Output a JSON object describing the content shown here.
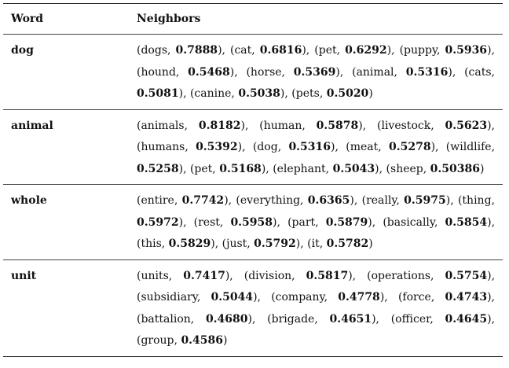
{
  "table": {
    "header": {
      "word": "Word",
      "neighbors": "Neighbors"
    },
    "rows": [
      {
        "word": "dog",
        "neighbors": [
          {
            "term": "dogs",
            "score": "0.7888"
          },
          {
            "term": "cat",
            "score": "0.6816"
          },
          {
            "term": "pet",
            "score": "0.6292"
          },
          {
            "term": "puppy",
            "score": "0.5936"
          },
          {
            "term": "hound",
            "score": "0.5468"
          },
          {
            "term": "horse",
            "score": "0.5369"
          },
          {
            "term": "animal",
            "score": "0.5316"
          },
          {
            "term": "cats",
            "score": "0.5081"
          },
          {
            "term": "canine",
            "score": "0.5038"
          },
          {
            "term": "pets",
            "score": "0.5020"
          }
        ]
      },
      {
        "word": "animal",
        "neighbors": [
          {
            "term": "animals",
            "score": "0.8182"
          },
          {
            "term": "human",
            "score": "0.5878"
          },
          {
            "term": "livestock",
            "score": "0.5623"
          },
          {
            "term": "humans",
            "score": "0.5392"
          },
          {
            "term": "dog",
            "score": "0.5316"
          },
          {
            "term": "meat",
            "score": "0.5278"
          },
          {
            "term": "wildlife",
            "score": "0.5258"
          },
          {
            "term": "pet",
            "score": "0.5168"
          },
          {
            "term": "elephant",
            "score": "0.5043"
          },
          {
            "term": "sheep",
            "score": "0.50386"
          }
        ]
      },
      {
        "word": "whole",
        "neighbors": [
          {
            "term": "entire",
            "score": "0.7742"
          },
          {
            "term": "everything",
            "score": "0.6365"
          },
          {
            "term": "really",
            "score": "0.5975"
          },
          {
            "term": "thing",
            "score": "0.5972"
          },
          {
            "term": "rest",
            "score": "0.5958"
          },
          {
            "term": "part",
            "score": "0.5879"
          },
          {
            "term": "basically",
            "score": "0.5854"
          },
          {
            "term": "this",
            "score": "0.5829"
          },
          {
            "term": "just",
            "score": "0.5792"
          },
          {
            "term": "it",
            "score": "0.5782"
          }
        ]
      },
      {
        "word": "unit",
        "neighbors": [
          {
            "term": "units",
            "score": "0.7417"
          },
          {
            "term": "division",
            "score": "0.5817"
          },
          {
            "term": "operations",
            "score": "0.5754"
          },
          {
            "term": "subsidiary",
            "score": "0.5044"
          },
          {
            "term": "company",
            "score": "0.4778"
          },
          {
            "term": "force",
            "score": "0.4743"
          },
          {
            "term": "battalion",
            "score": "0.4680"
          },
          {
            "term": "brigade",
            "score": "0.4651"
          },
          {
            "term": "officer",
            "score": "0.4645"
          },
          {
            "term": "group",
            "score": "0.4586"
          }
        ]
      }
    ]
  }
}
